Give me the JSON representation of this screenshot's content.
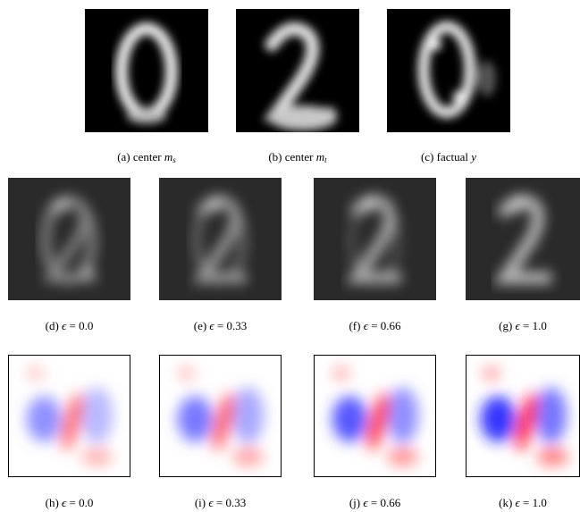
{
  "figure": {
    "row1": [
      {
        "caption_prefix": "(a) center ",
        "caption_var": "m",
        "caption_sub": "s"
      },
      {
        "caption_prefix": "(b) center ",
        "caption_var": "m",
        "caption_sub": "t"
      },
      {
        "caption_prefix": "(c) factual ",
        "caption_var": "y",
        "caption_sub": ""
      }
    ],
    "row2": [
      {
        "caption_prefix": "(d) ",
        "epsilon_symbol": "ϵ",
        "equals": " = ",
        "value": "0.0"
      },
      {
        "caption_prefix": "(e) ",
        "epsilon_symbol": "ϵ",
        "equals": " = ",
        "value": "0.33"
      },
      {
        "caption_prefix": "(f) ",
        "epsilon_symbol": "ϵ",
        "equals": " = ",
        "value": "0.66"
      },
      {
        "caption_prefix": "(g) ",
        "epsilon_symbol": "ϵ",
        "equals": " = ",
        "value": "1.0"
      }
    ],
    "row3": [
      {
        "caption_prefix": "(h) ",
        "epsilon_symbol": "ϵ",
        "equals": " = ",
        "value": "0.0"
      },
      {
        "caption_prefix": "(i) ",
        "epsilon_symbol": "ϵ",
        "equals": " = ",
        "value": "0.33"
      },
      {
        "caption_prefix": "(j) ",
        "epsilon_symbol": "ϵ",
        "equals": " = ",
        "value": "0.66"
      },
      {
        "caption_prefix": "(k) ",
        "epsilon_symbol": "ϵ",
        "equals": " = ",
        "value": "1.0"
      }
    ]
  }
}
